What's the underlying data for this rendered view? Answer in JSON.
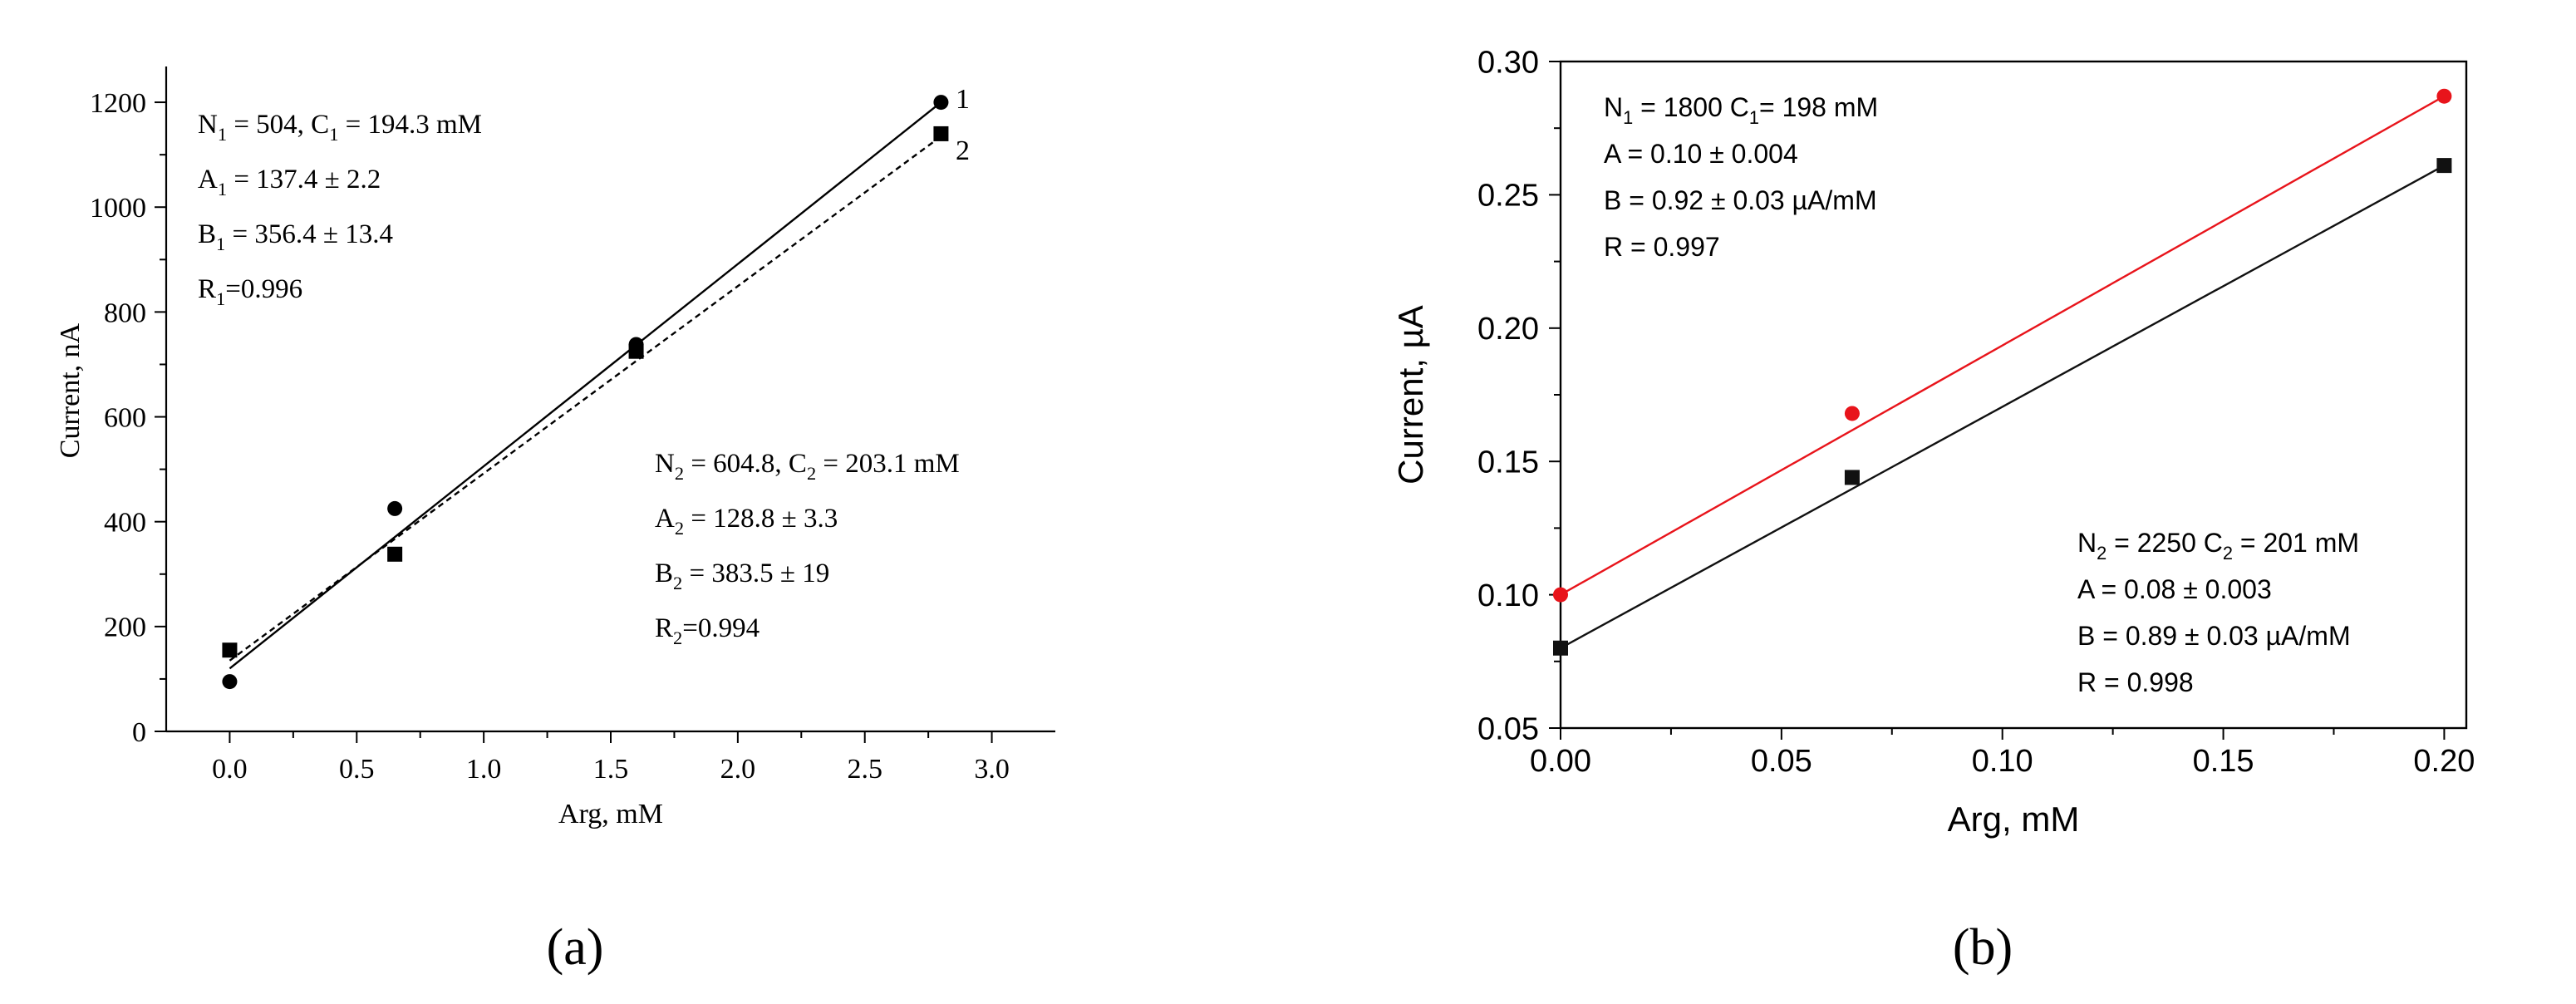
{
  "chart_data": [
    {
      "type": "scatter",
      "panel_label": "(a)",
      "xlabel": "Arg, mM",
      "ylabel": "Current, nA",
      "xlim": [
        -0.25,
        3.25
      ],
      "ylim": [
        0,
        1300
      ],
      "xticks": [
        "0.0",
        "0.5",
        "1.0",
        "1.5",
        "2.0",
        "2.5",
        "3.0"
      ],
      "yticks": [
        "0",
        "200",
        "400",
        "600",
        "800",
        "1000",
        "1200"
      ],
      "series": [
        {
          "name": "1",
          "marker": "circle",
          "line": "solid",
          "x": [
            0.0,
            0.65,
            1.6,
            2.8
          ],
          "y": [
            95,
            425,
            738,
            1200
          ],
          "fit": {
            "x0": 0.0,
            "y0": 120,
            "x1": 2.8,
            "y1": 1200
          }
        },
        {
          "name": "2",
          "marker": "square",
          "line": "dashed",
          "x": [
            0.0,
            0.65,
            1.6,
            2.8
          ],
          "y": [
            155,
            338,
            725,
            1140
          ],
          "fit": {
            "x0": 0.0,
            "y0": 135,
            "x1": 2.8,
            "y1": 1135
          }
        }
      ],
      "annotations": [
        {
          "lines": [
            [
              "N",
              "1",
              " = 504, C",
              "1",
              " = 194.3 mM"
            ],
            [
              "A",
              "1",
              " = 137.4 ± 2.2"
            ],
            [
              "B",
              "1",
              " = 356.4 ± 13.4"
            ],
            [
              "R",
              "1",
              "=0.996"
            ]
          ]
        },
        {
          "lines": [
            [
              "N",
              "2",
              " = 604.8, C",
              "2",
              " = 203.1 mM"
            ],
            [
              "A",
              "2",
              " = 128.8 ± 3.3"
            ],
            [
              "B",
              "2",
              " = 383.5 ± 19"
            ],
            [
              "R",
              "2",
              "=0.994"
            ]
          ]
        }
      ]
    },
    {
      "type": "scatter",
      "panel_label": "(b)",
      "xlabel": "Arg, mM",
      "ylabel": "Current, µA",
      "xlim": [
        0.0,
        0.205
      ],
      "ylim": [
        0.05,
        0.3
      ],
      "xticks": [
        "0.00",
        "0.05",
        "0.10",
        "0.15",
        "0.20"
      ],
      "yticks": [
        "0.05",
        "0.10",
        "0.15",
        "0.20",
        "0.25",
        "0.30"
      ],
      "colors": {
        "red": "#e8141b",
        "black": "#111111"
      },
      "series": [
        {
          "marker": "circle",
          "color": "#e8141b",
          "x": [
            0.0,
            0.066,
            0.2
          ],
          "y": [
            0.1,
            0.168,
            0.287
          ],
          "fit": {
            "x0": 0.0,
            "y0": 0.1,
            "x1": 0.2,
            "y1": 0.287
          }
        },
        {
          "marker": "square",
          "color": "#111111",
          "x": [
            0.0,
            0.066,
            0.2
          ],
          "y": [
            0.08,
            0.144,
            0.261
          ],
          "fit": {
            "x0": 0.0,
            "y0": 0.08,
            "x1": 0.2,
            "y1": 0.261
          }
        }
      ],
      "annotations": [
        {
          "lines": [
            [
              "N",
              "1",
              " = 1800  C",
              "1",
              "= 198 mM"
            ],
            [
              "A = 0.10 ± 0.004"
            ],
            [
              "B = 0.92 ± 0.03 µA/mM"
            ],
            [
              "R = 0.997"
            ]
          ]
        },
        {
          "lines": [
            [
              "N",
              "2",
              " = 2250  C",
              "2",
              " = 201 mM"
            ],
            [
              "A = 0.08 ± 0.003"
            ],
            [
              "B = 0.89 ± 0.03 µA/mM"
            ],
            [
              "R = 0.998"
            ]
          ]
        }
      ]
    }
  ]
}
